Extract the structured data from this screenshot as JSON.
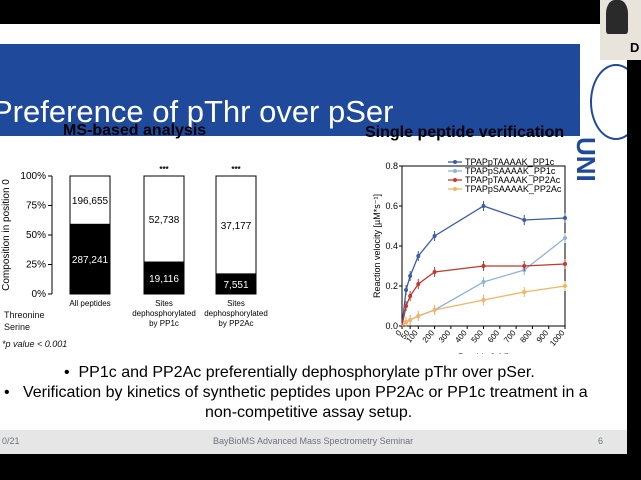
{
  "slide": {
    "title": "Preference of pThr over pSer",
    "logo_text": "UNI",
    "webcam_label": "D"
  },
  "left_panel": {
    "title": "MS-based analysis",
    "yaxis_label": "Composition in position 0",
    "yticks": [
      "100%",
      "75%",
      "50%",
      "25%",
      "0%"
    ],
    "legend_threonine": "Threonine",
    "legend_serine": "Serine",
    "significance": "***",
    "pvalue_note": "*p value < 0.001"
  },
  "right_panel": {
    "title": "Single peptide verification"
  },
  "bullets": {
    "line1": "PP1c and PP2Ac preferentially dephosphorylate pThr over pSer.",
    "line2": "Verification by kinetics of synthetic peptides upon PP2Ac or PP1c treatment in a",
    "line3": "non-competitive assay setup."
  },
  "footer": {
    "date": "0/21",
    "center": "BayBioMS Advanced Mass Spectrometry Seminar",
    "page": "6"
  },
  "chart_data": [
    {
      "type": "bar",
      "title": "MS-based analysis",
      "ylabel": "Composition in position 0",
      "ylim": [
        0,
        100
      ],
      "categories": [
        "All peptides",
        "Sites dephosphorylated by PP1c",
        "Sites dephosphorylated by PP2Ac"
      ],
      "series": [
        {
          "name": "Threonine",
          "color": "#000000",
          "values": [
            287241,
            19116,
            7551
          ],
          "fraction": [
            0.59,
            0.27,
            0.17
          ]
        },
        {
          "name": "Serine",
          "color": "#ffffff",
          "values": [
            196655,
            52738,
            37177
          ],
          "fraction": [
            0.41,
            0.73,
            0.83
          ]
        }
      ]
    },
    {
      "type": "scatter",
      "title": "Single peptide verification",
      "xlabel": "Peptide [µM]",
      "ylabel": "Reaction velocity [µM*s⁻¹]",
      "xlim": [
        0,
        1000
      ],
      "ylim": [
        0,
        0.8
      ],
      "xticks": [
        0,
        50,
        100,
        200,
        300,
        400,
        500,
        600,
        700,
        800,
        900,
        1000
      ],
      "yticks": [
        0.0,
        0.2,
        0.4,
        0.6,
        0.8
      ],
      "legend": "top-right",
      "series": [
        {
          "name": "TPAPpTAAAAK_PP1c",
          "color": "#3b5aa8",
          "x": [
            0,
            25,
            50,
            100,
            200,
            500,
            750,
            1000
          ],
          "y": [
            0.0,
            0.18,
            0.25,
            0.35,
            0.45,
            0.6,
            0.53,
            0.54
          ]
        },
        {
          "name": "TPAPpSAAAAK_PP1c",
          "color": "#8fb3e0",
          "x": [
            0,
            25,
            50,
            100,
            200,
            500,
            750,
            1000
          ],
          "y": [
            0.0,
            0.02,
            0.03,
            0.05,
            0.08,
            0.22,
            0.28,
            0.44
          ]
        },
        {
          "name": "TPAPpTAAAAK_PP2Ac",
          "color": "#c0392b",
          "x": [
            0,
            25,
            50,
            100,
            200,
            500,
            750,
            1000
          ],
          "y": [
            0.0,
            0.1,
            0.15,
            0.21,
            0.27,
            0.3,
            0.3,
            0.31
          ]
        },
        {
          "name": "TPAPpSAAAAK_PP2Ac",
          "color": "#f5b460",
          "x": [
            0,
            25,
            50,
            100,
            200,
            500,
            750,
            1000
          ],
          "y": [
            0.0,
            0.02,
            0.03,
            0.05,
            0.08,
            0.13,
            0.17,
            0.2
          ]
        }
      ]
    }
  ]
}
